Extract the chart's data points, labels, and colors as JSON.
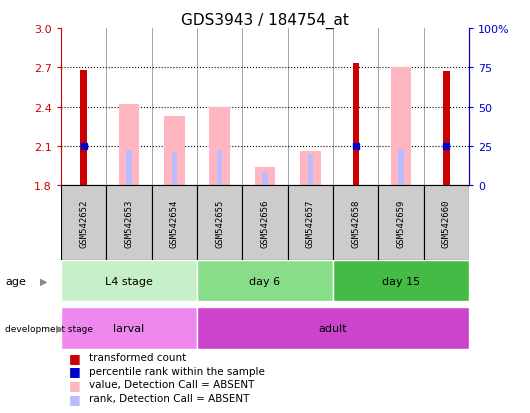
{
  "title": "GDS3943 / 184754_at",
  "samples": [
    "GSM542652",
    "GSM542653",
    "GSM542654",
    "GSM542655",
    "GSM542656",
    "GSM542657",
    "GSM542658",
    "GSM542659",
    "GSM542660"
  ],
  "transformed_count": [
    2.68,
    0,
    0,
    0,
    0,
    0,
    2.73,
    0,
    2.67
  ],
  "percentile_rank": [
    2.1,
    0,
    0,
    0,
    0,
    0,
    2.1,
    0,
    2.1
  ],
  "absent_value": [
    0,
    2.42,
    2.33,
    2.4,
    1.94,
    2.06,
    0,
    2.7,
    0
  ],
  "absent_rank": [
    0,
    2.07,
    2.05,
    2.07,
    1.9,
    2.04,
    0,
    2.08,
    0
  ],
  "ylim": [
    1.8,
    3.0
  ],
  "yticks_left": [
    1.8,
    2.1,
    2.4,
    2.7,
    3.0
  ],
  "yticks_right": [
    0,
    25,
    50,
    75,
    100
  ],
  "age_groups": [
    {
      "label": "L4 stage",
      "start": 0,
      "end": 3,
      "color": "#C8F0C8"
    },
    {
      "label": "day 6",
      "start": 3,
      "end": 6,
      "color": "#88DD88"
    },
    {
      "label": "day 15",
      "start": 6,
      "end": 9,
      "color": "#44BB44"
    }
  ],
  "dev_groups": [
    {
      "label": "larval",
      "start": 0,
      "end": 3,
      "color": "#EE88EE"
    },
    {
      "label": "adult",
      "start": 3,
      "end": 9,
      "color": "#CC44CC"
    }
  ],
  "red_color": "#CC0000",
  "blue_color": "#0000CC",
  "pink_color": "#FFB6C1",
  "lavender_color": "#BBBBFF",
  "right_axis_color": "#0000CC",
  "left_axis_color": "#CC0000",
  "sample_box_color": "#CCCCCC",
  "legend_items": [
    {
      "color": "#CC0000",
      "label": "transformed count"
    },
    {
      "color": "#0000CC",
      "label": "percentile rank within the sample"
    },
    {
      "color": "#FFB6C1",
      "label": "value, Detection Call = ABSENT"
    },
    {
      "color": "#BBBBFF",
      "label": "rank, Detection Call = ABSENT"
    }
  ]
}
